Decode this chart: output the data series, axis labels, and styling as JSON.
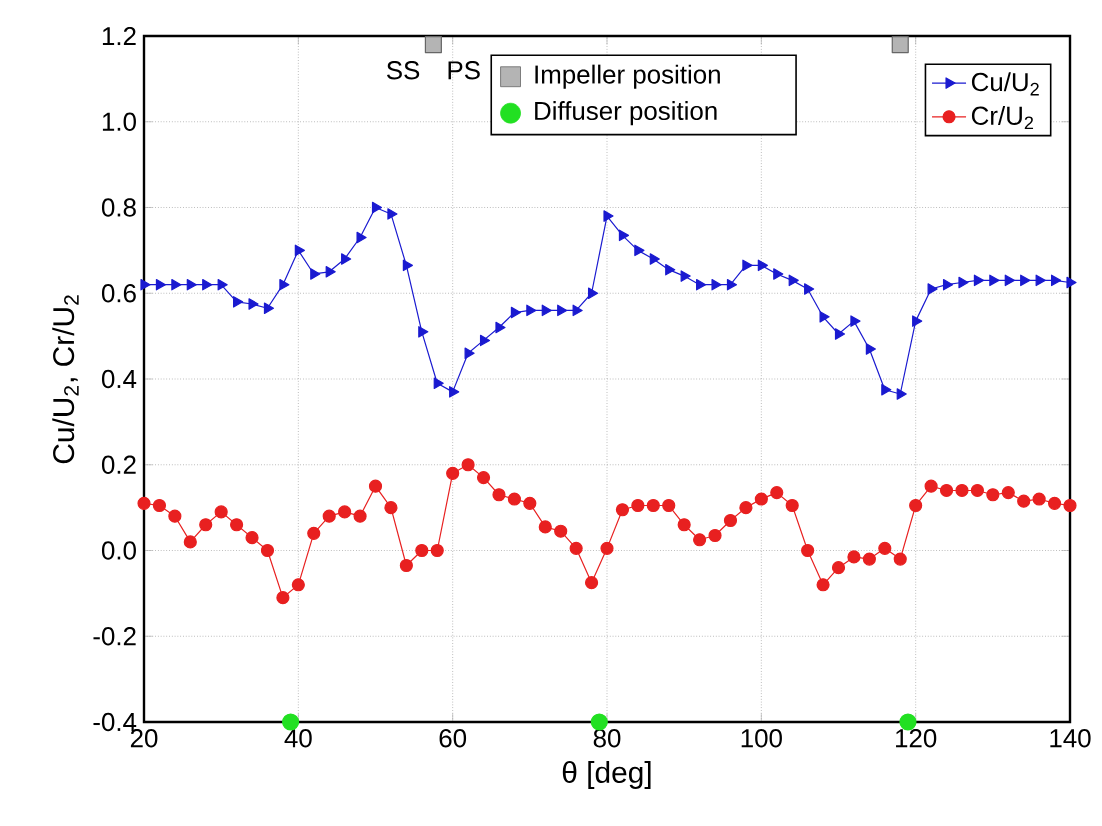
{
  "chart_data": {
    "type": "line",
    "xlabel": "θ [deg]",
    "ylabel": "Cu/U$_{2}$, Cr/U$_{2}$",
    "x": [
      20,
      22,
      24,
      26,
      28,
      30,
      32,
      34,
      36,
      38,
      40,
      42,
      44,
      46,
      48,
      50,
      52,
      54,
      56,
      58,
      60,
      62,
      64,
      66,
      68,
      70,
      72,
      74,
      76,
      78,
      80,
      82,
      84,
      86,
      88,
      90,
      92,
      94,
      96,
      98,
      100,
      102,
      104,
      106,
      108,
      110,
      112,
      114,
      116,
      118,
      120,
      122,
      124,
      126,
      128,
      130,
      132,
      134,
      136,
      138,
      140
    ],
    "series": [
      {
        "name": "Cu/U$_{2}$",
        "color": "#1a1ad0",
        "marker": "triangle",
        "values": [
          0.62,
          0.62,
          0.62,
          0.62,
          0.62,
          0.62,
          0.58,
          0.575,
          0.565,
          0.62,
          0.7,
          0.645,
          0.65,
          0.68,
          0.73,
          0.8,
          0.785,
          0.665,
          0.51,
          0.39,
          0.37,
          0.46,
          0.49,
          0.52,
          0.555,
          0.56,
          0.56,
          0.56,
          0.56,
          0.6,
          0.78,
          0.735,
          0.7,
          0.68,
          0.655,
          0.64,
          0.62,
          0.62,
          0.62,
          0.665,
          0.665,
          0.645,
          0.63,
          0.61,
          0.545,
          0.505,
          0.535,
          0.47,
          0.375,
          0.365,
          0.535,
          0.61,
          0.62,
          0.625,
          0.63,
          0.63,
          0.63,
          0.63,
          0.63,
          0.63,
          0.625
        ]
      },
      {
        "name": "Cr/U$_{2}$",
        "color": "#e82020",
        "marker": "circle",
        "values": [
          0.11,
          0.105,
          0.08,
          0.02,
          0.06,
          0.09,
          0.06,
          0.03,
          0.0,
          -0.11,
          -0.08,
          0.04,
          0.08,
          0.09,
          0.08,
          0.15,
          0.1,
          -0.035,
          0.0,
          0.0,
          0.18,
          0.2,
          0.17,
          0.13,
          0.12,
          0.11,
          0.055,
          0.045,
          0.005,
          -0.075,
          0.005,
          0.095,
          0.105,
          0.105,
          0.105,
          0.06,
          0.025,
          0.035,
          0.07,
          0.1,
          0.12,
          0.135,
          0.105,
          0.0,
          -0.08,
          -0.04,
          -0.015,
          -0.02,
          0.005,
          -0.02,
          0.105,
          0.15,
          0.14,
          0.14,
          0.14,
          0.13,
          0.135,
          0.115,
          0.12,
          0.11,
          0.105
        ]
      },
      {
        "name": "Impeller position",
        "type": "scatter",
        "color": "#b4b4b4",
        "marker": "square",
        "x": [
          57.5,
          118
        ],
        "values": [
          1.18,
          1.18
        ]
      },
      {
        "name": "Diffuser position",
        "type": "scatter",
        "color": "#22e022",
        "marker": "circle",
        "x": [
          39,
          79,
          119
        ],
        "values": [
          -0.4,
          -0.4,
          -0.4
        ]
      }
    ],
    "annotations": [
      "SS",
      "PS"
    ],
    "xlim": [
      20,
      140
    ],
    "ylim": [
      -0.4,
      1.2
    ],
    "xticks": [
      20,
      40,
      60,
      80,
      100,
      120,
      140
    ],
    "yticks": [
      -0.4,
      -0.2,
      {
        "value": 0,
        "label": "0.0"
      },
      0.2,
      0.4,
      0.6,
      0.8,
      {
        "value": 1,
        "label": "1.0"
      },
      1.2
    ],
    "grid": true,
    "legend": "top right"
  }
}
